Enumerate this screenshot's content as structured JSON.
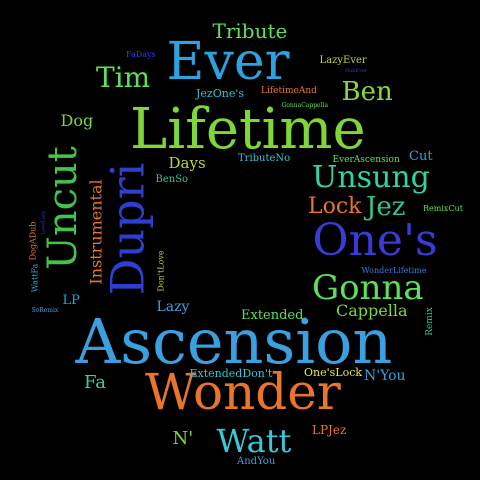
{
  "background": "#000000",
  "words": [
    {
      "text": "Ascension",
      "color": "#3aa0e0",
      "rotate": 0
    },
    {
      "text": "Lifetime",
      "color": "#7ed63a",
      "rotate": 0
    },
    {
      "text": "Wonder",
      "color": "#e8752a",
      "rotate": 0
    },
    {
      "text": "Ever",
      "color": "#2aa3e0",
      "rotate": 0
    },
    {
      "text": "One's",
      "color": "#3a3ad8",
      "rotate": 0
    },
    {
      "text": "Dupri",
      "color": "#2d3ed1",
      "rotate": -90
    },
    {
      "text": "Uncut",
      "color": "#43c34a",
      "rotate": -90
    },
    {
      "text": "Gonna",
      "color": "#5ee05a",
      "rotate": 0
    },
    {
      "text": "Unsung",
      "color": "#33d2a6",
      "rotate": 0
    },
    {
      "text": "Watt",
      "color": "#3ac8d8",
      "rotate": 0
    },
    {
      "text": "Tim",
      "color": "#5ee05a",
      "rotate": 0
    },
    {
      "text": "Ben",
      "color": "#8ad83a",
      "rotate": 0
    },
    {
      "text": "Jez",
      "color": "#33c48a",
      "rotate": 0
    },
    {
      "text": "Lock",
      "color": "#e8752a",
      "rotate": 0
    },
    {
      "text": "Tribute",
      "color": "#5ee05a",
      "rotate": 0
    },
    {
      "text": "Instrumental",
      "color": "#e8752a",
      "rotate": -90
    },
    {
      "text": "Cappella",
      "color": "#7ed63a",
      "rotate": 0
    },
    {
      "text": "Dog",
      "color": "#7ed63a",
      "rotate": 0
    },
    {
      "text": "Days",
      "color": "#b7d63a",
      "rotate": 0
    },
    {
      "text": "Fa",
      "color": "#33d2a6",
      "rotate": 0
    },
    {
      "text": "N'",
      "color": "#7ed63a",
      "rotate": 0
    },
    {
      "text": "N'You",
      "color": "#3aa0e0",
      "rotate": 0
    },
    {
      "text": "Lazy",
      "color": "#3aa0e0",
      "rotate": 0
    },
    {
      "text": "Cut",
      "color": "#2aa3e0",
      "rotate": 0
    },
    {
      "text": "Extended",
      "color": "#5ee05a",
      "rotate": 0
    },
    {
      "text": "LP",
      "color": "#2aa3e0",
      "rotate": 0
    },
    {
      "text": "LPJez",
      "color": "#e8752a",
      "rotate": 0
    },
    {
      "text": "One'sLock",
      "color": "#e8e83a",
      "rotate": 0
    },
    {
      "text": "ExtendedDon't",
      "color": "#33c4d2",
      "rotate": 0
    },
    {
      "text": "JezOne's",
      "color": "#33c4d2",
      "rotate": 0
    },
    {
      "text": "LazyEver",
      "color": "#b7d63a",
      "rotate": 0
    },
    {
      "text": "LifetimeAnd",
      "color": "#e8752a",
      "rotate": 0
    },
    {
      "text": "TributeNo",
      "color": "#33c4d2",
      "rotate": 0
    },
    {
      "text": "EverAscension",
      "color": "#5ee05a",
      "rotate": 0
    },
    {
      "text": "BenSo",
      "color": "#33c48a",
      "rotate": 0
    },
    {
      "text": "Remix",
      "color": "#33c48a",
      "rotate": -90
    },
    {
      "text": "RemixCut",
      "color": "#5ee05a",
      "rotate": 0
    },
    {
      "text": "WonderLifetime",
      "color": "#3a7ad8",
      "rotate": 0
    },
    {
      "text": "Don'tLove",
      "color": "#b7d63a",
      "rotate": -90
    },
    {
      "text": "DogADub",
      "color": "#e8752a",
      "rotate": -90
    },
    {
      "text": "WattFa",
      "color": "#2aa3e0",
      "rotate": -90
    },
    {
      "text": "FaDays",
      "color": "#3a3ad8",
      "rotate": 0
    },
    {
      "text": "GonnaCappella",
      "color": "#5ee05a",
      "rotate": 0
    },
    {
      "text": "DubEver",
      "color": "#2d3ed1",
      "rotate": 0
    },
    {
      "text": "LoveLazy",
      "color": "#2d3ed1",
      "rotate": -90
    },
    {
      "text": "SoRemix",
      "color": "#3aa0e0",
      "rotate": 0
    },
    {
      "text": "AndYou",
      "color": "#3aa0e0",
      "rotate": 0
    }
  ]
}
